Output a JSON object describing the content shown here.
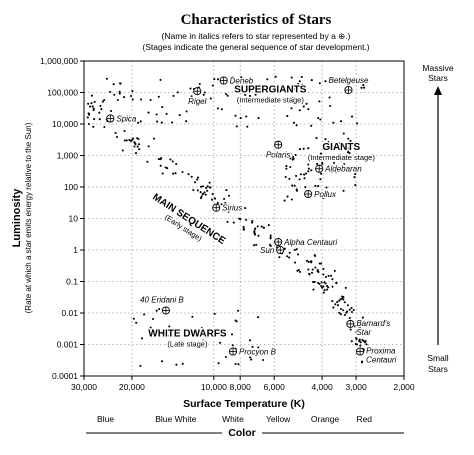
{
  "chart_data": {
    "type": "scatter",
    "title": "Characteristics of Stars",
    "subtitle_lines": [
      "(Name in italics refers to star represented by a ⊕.)",
      "(Stages indicate the general sequence of star development.)"
    ],
    "xlabel": "Surface Temperature (K)",
    "ylabel": "Luminosity",
    "ylabel_sub": "(Rate at which a star emits energy relative to the Sun)",
    "x_scale": "log-reversed",
    "y_scale": "log",
    "xlim": [
      30000,
      2000
    ],
    "ylim": [
      0.0001,
      1000000
    ],
    "grid": true,
    "x_ticks": [
      {
        "v": 30000,
        "label": "30,000"
      },
      {
        "v": 20000,
        "label": "20,000"
      },
      {
        "v": 10000,
        "label": "10,000"
      },
      {
        "v": 8000,
        "label": "8,000"
      },
      {
        "v": 6000,
        "label": "6,000"
      },
      {
        "v": 4000,
        "label": "4,000"
      },
      {
        "v": 3000,
        "label": "3,000"
      },
      {
        "v": 2000,
        "label": "2,000"
      }
    ],
    "y_ticks": [
      {
        "v": 1000000,
        "label": "1,000,000"
      },
      {
        "v": 100000,
        "label": "100,000"
      },
      {
        "v": 10000,
        "label": "10,000"
      },
      {
        "v": 1000,
        "label": "1,000"
      },
      {
        "v": 100,
        "label": "100"
      },
      {
        "v": 10,
        "label": "10"
      },
      {
        "v": 1,
        "label": "1"
      },
      {
        "v": 0.1,
        "label": "0.1"
      },
      {
        "v": 0.01,
        "label": "0.01"
      },
      {
        "v": 0.001,
        "label": "0.001"
      },
      {
        "v": 0.0001,
        "label": "0.0001"
      }
    ],
    "color_labels": [
      {
        "label": "Blue",
        "v": 25000
      },
      {
        "label": "Blue White",
        "v": 13800
      },
      {
        "label": "White",
        "v": 8500
      },
      {
        "label": "Yellow",
        "v": 5800
      },
      {
        "label": "Orange",
        "v": 3900
      },
      {
        "label": "Red",
        "v": 2800
      }
    ],
    "color_axis_title": "Color",
    "right_top_label": [
      "Massive",
      "Stars"
    ],
    "right_bottom_label": [
      "Small",
      "Stars"
    ],
    "stage_labels": [
      {
        "text": "SUPERGIANTS",
        "sub": "(Intermediate stage)",
        "t": 6200,
        "l": 100000
      },
      {
        "text": "GIANTS",
        "sub": "(Intermediate stage)",
        "t": 3400,
        "l": 1500
      },
      {
        "text": "MAIN SEQUENCE",
        "sub": "(Early stage)",
        "t": 12500,
        "l": 8
      },
      {
        "text": "WHITE DWARFS",
        "sub": "(Late stage)",
        "t": 12500,
        "l": 0.0018
      }
    ],
    "named_stars": [
      {
        "name": "Deneb",
        "t": 9200,
        "l": 240000,
        "label_side": "right"
      },
      {
        "name": "Betelgeuse",
        "t": 3200,
        "l": 120000,
        "label_side": "above"
      },
      {
        "name": "Rigel",
        "t": 11500,
        "l": 110000,
        "label_side": "below"
      },
      {
        "name": "Spica",
        "t": 24000,
        "l": 15000,
        "label_side": "right"
      },
      {
        "name": "Polaris",
        "t": 5800,
        "l": 2200,
        "label_side": "below"
      },
      {
        "name": "Aldebaran",
        "t": 4100,
        "l": 380,
        "label_side": "right"
      },
      {
        "name": "Pollux",
        "t": 4500,
        "l": 60,
        "label_side": "right"
      },
      {
        "name": "Sirius",
        "t": 9800,
        "l": 22,
        "label_side": "right"
      },
      {
        "name": "Alpha Centauri",
        "t": 5800,
        "l": 1.8,
        "label_side": "right"
      },
      {
        "name": "Sun",
        "t": 5700,
        "l": 1,
        "label_side": "left"
      },
      {
        "name": "40 Eridani B",
        "t": 15000,
        "l": 0.012,
        "label_side": "above-left"
      },
      {
        "name": "Barnard's Star",
        "t": 3150,
        "l": 0.0045,
        "label_side": "right"
      },
      {
        "name": "Procyon B",
        "t": 8500,
        "l": 0.0006,
        "label_side": "right"
      },
      {
        "name": "Proxima Centauri",
        "t": 2900,
        "l": 0.0006,
        "label_side": "right"
      }
    ]
  }
}
